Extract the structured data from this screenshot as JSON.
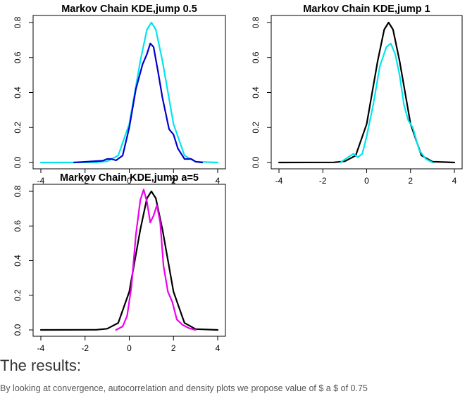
{
  "results": {
    "heading": "The results:",
    "text": "By looking at convergence, autocorrelation and density plots we propose value of $ a $ of 0.75"
  },
  "chart_data": [
    {
      "type": "line",
      "title": "Markov Chain KDE,jump 0.5",
      "xlim": [
        -4,
        4
      ],
      "ylim": [
        0,
        0.8
      ],
      "x_ticks": [
        "-4",
        "-2",
        "0",
        "2",
        "4"
      ],
      "y_ticks": [
        "0.0",
        "0.2",
        "0.4",
        "0.6",
        "0.8"
      ],
      "series": [
        {
          "color": "#00e5ee",
          "x": [
            -4,
            -1.5,
            -1,
            -0.5,
            0,
            0.5,
            0.8,
            1,
            1.2,
            1.5,
            2,
            2.5,
            3,
            4
          ],
          "y": [
            0,
            0.001,
            0.007,
            0.04,
            0.22,
            0.58,
            0.76,
            0.8,
            0.76,
            0.58,
            0.22,
            0.04,
            0.005,
            0
          ]
        },
        {
          "color": "#0000cd",
          "x": [
            -2.5,
            -1.2,
            -1.0,
            -0.8,
            -0.6,
            -0.3,
            0,
            0.3,
            0.6,
            0.8,
            0.95,
            1.1,
            1.3,
            1.5,
            1.8,
            2.0,
            2.2,
            2.5,
            2.8,
            3.0,
            3.3
          ],
          "y": [
            0,
            0.01,
            0.02,
            0.02,
            0.012,
            0.04,
            0.2,
            0.42,
            0.56,
            0.62,
            0.68,
            0.66,
            0.52,
            0.37,
            0.19,
            0.16,
            0.08,
            0.02,
            0.02,
            0.005,
            0
          ]
        }
      ]
    },
    {
      "type": "line",
      "title": "Markov Chain KDE,jump 1",
      "xlim": [
        -4,
        4
      ],
      "ylim": [
        0,
        0.8
      ],
      "x_ticks": [
        "-4",
        "-2",
        "0",
        "2",
        "4"
      ],
      "y_ticks": [
        "0.0",
        "0.2",
        "0.4",
        "0.6",
        "0.8"
      ],
      "series": [
        {
          "color": "#000000",
          "x": [
            -4,
            -1.5,
            -1,
            -0.5,
            0,
            0.5,
            0.8,
            1,
            1.2,
            1.5,
            2,
            2.5,
            3,
            4
          ],
          "y": [
            0,
            0.001,
            0.007,
            0.04,
            0.22,
            0.58,
            0.76,
            0.8,
            0.76,
            0.58,
            0.22,
            0.04,
            0.005,
            0
          ]
        },
        {
          "color": "#00e5ee",
          "x": [
            -1.2,
            -0.85,
            -0.6,
            -0.4,
            -0.2,
            0,
            0.3,
            0.6,
            0.9,
            1.1,
            1.3,
            1.5,
            1.7,
            1.9,
            2.1,
            2.4,
            2.7,
            3.0
          ],
          "y": [
            0,
            0.03,
            0.05,
            0.03,
            0.05,
            0.15,
            0.33,
            0.55,
            0.66,
            0.68,
            0.62,
            0.5,
            0.33,
            0.24,
            0.2,
            0.07,
            0.02,
            0
          ]
        }
      ]
    },
    {
      "type": "line",
      "title": "Markov Chain KDE,jump a=5",
      "xlim": [
        -4,
        4
      ],
      "ylim": [
        0,
        0.8
      ],
      "x_ticks": [
        "-4",
        "-2",
        "0",
        "2",
        "4"
      ],
      "y_ticks": [
        "0.0",
        "0.2",
        "0.4",
        "0.6",
        "0.8"
      ],
      "series": [
        {
          "color": "#000000",
          "x": [
            -4,
            -1.5,
            -1,
            -0.5,
            0,
            0.5,
            0.8,
            1,
            1.2,
            1.5,
            2,
            2.5,
            3,
            4
          ],
          "y": [
            0,
            0.001,
            0.007,
            0.04,
            0.22,
            0.58,
            0.76,
            0.8,
            0.76,
            0.58,
            0.22,
            0.04,
            0.005,
            0
          ]
        },
        {
          "color": "#ee00ee",
          "x": [
            -0.6,
            -0.3,
            -0.1,
            0.1,
            0.3,
            0.5,
            0.65,
            0.8,
            0.95,
            1.1,
            1.25,
            1.4,
            1.55,
            1.75,
            1.95,
            2.15,
            2.4,
            2.7,
            3.0
          ],
          "y": [
            0,
            0.02,
            0.08,
            0.25,
            0.55,
            0.75,
            0.81,
            0.74,
            0.62,
            0.66,
            0.72,
            0.62,
            0.37,
            0.22,
            0.16,
            0.06,
            0.03,
            0.01,
            0
          ]
        }
      ]
    }
  ]
}
